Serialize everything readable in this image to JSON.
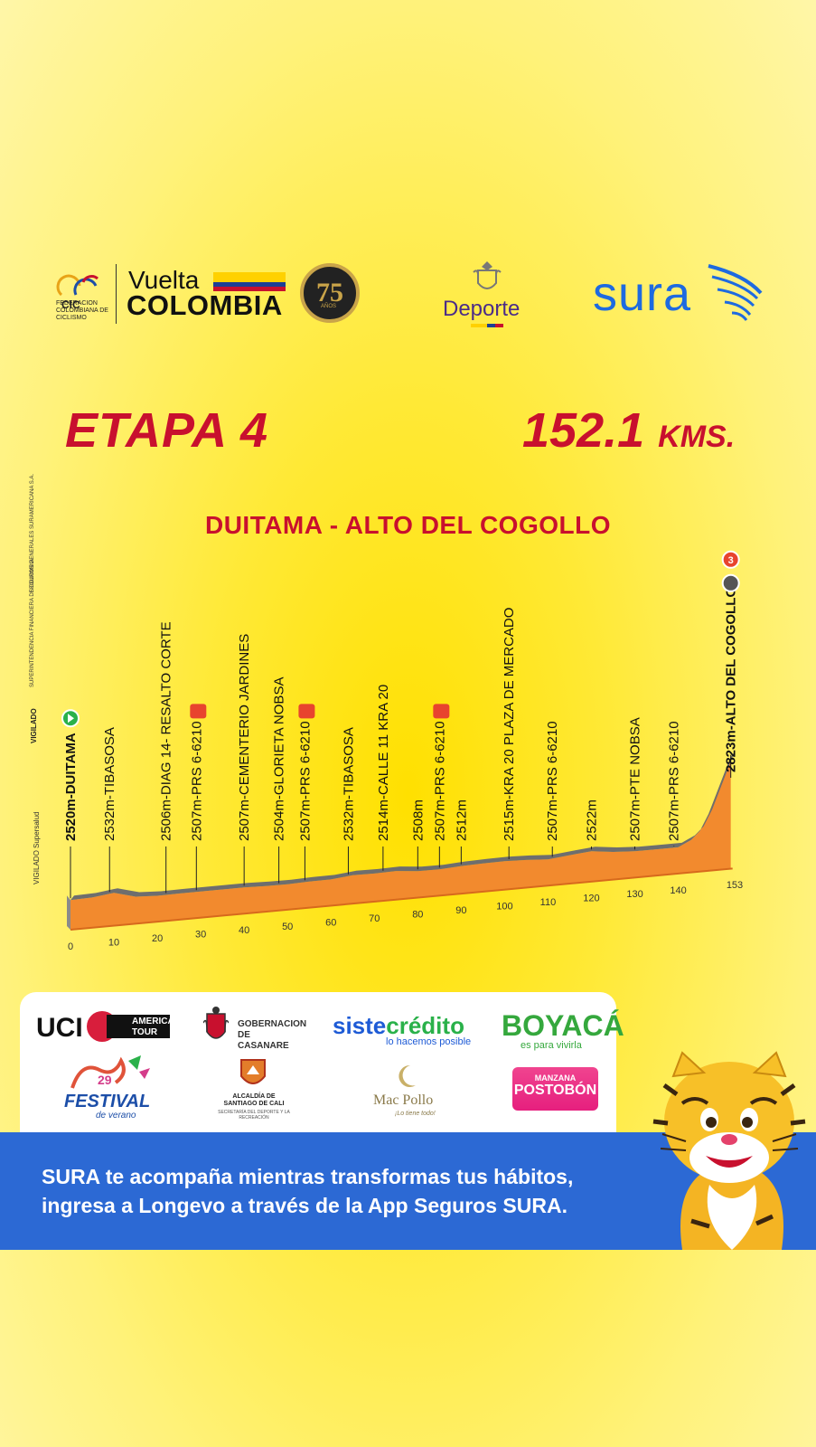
{
  "header": {
    "fcc_logo_text": "FEDERACION COLOMBIANA DE CICLISMO",
    "vuelta": "Vuelta",
    "colombia": "COLOMBIA",
    "anniversary": "75",
    "anniversary_sub": "AÑOS",
    "deporte": "Deporte",
    "sura": "sura"
  },
  "title": {
    "stage": "ETAPA 4",
    "distance_value": "152.1",
    "distance_unit": "KMS.",
    "route": "DUITAMA - ALTO DEL COGOLLO"
  },
  "side_notes": {
    "vigilado": "VIGILADO",
    "superfinanciera": "SUPERINTENDENCIA FINANCIERA DE COLOMBIA",
    "seguros": "SEGUROS GENERALES SURAMERICANA S.A.",
    "supersalud": "VIGILADO Supersalud"
  },
  "chart_data": {
    "type": "area",
    "xlabel": "",
    "ylabel": "",
    "xlim": [
      0,
      153
    ],
    "x_ticks": [
      0,
      10,
      20,
      30,
      40,
      50,
      60,
      70,
      80,
      90,
      100,
      110,
      120,
      130,
      140,
      153
    ],
    "profile": {
      "x": [
        0,
        5,
        10,
        15,
        20,
        25,
        30,
        35,
        40,
        45,
        50,
        55,
        60,
        65,
        70,
        75,
        80,
        85,
        90,
        95,
        100,
        105,
        110,
        115,
        120,
        125,
        130,
        135,
        140,
        143,
        145,
        147,
        149,
        151,
        152.1
      ],
      "y": [
        2520,
        2522,
        2532,
        2510,
        2506,
        2507,
        2507,
        2507,
        2507,
        2505,
        2504,
        2507,
        2507,
        2515,
        2514,
        2516,
        2508,
        2507,
        2512,
        2514,
        2515,
        2512,
        2507,
        2515,
        2522,
        2512,
        2507,
        2507,
        2507,
        2530,
        2560,
        2620,
        2700,
        2780,
        2823
      ]
    },
    "waypoints": [
      {
        "km": 0,
        "label": "2520m-DUITAMA",
        "bold": true,
        "icon": "start"
      },
      {
        "km": 9,
        "label": "2532m-TIBASOSA"
      },
      {
        "km": 22,
        "label": "2506m-DIAG 14- RESALTO CORTE"
      },
      {
        "km": 29,
        "label": "2507m-PRS 6-6210",
        "icon": "sprint"
      },
      {
        "km": 40,
        "label": "2507m-CEMENTERIO JARDINES"
      },
      {
        "km": 48,
        "label": "2504m-GLORIETA NOBSA"
      },
      {
        "km": 54,
        "label": "2507m-PRS 6-6210",
        "icon": "sprint"
      },
      {
        "km": 64,
        "label": "2532m-TIBASOSA"
      },
      {
        "km": 72,
        "label": "2514m-CALLE 11 KRA 20"
      },
      {
        "km": 80,
        "label": "2508m"
      },
      {
        "km": 85,
        "label": "2507m-PRS 6-6210",
        "icon": "sprint"
      },
      {
        "km": 90,
        "label": "2512m"
      },
      {
        "km": 101,
        "label": "2515m-KRA 20 PLAZA DE MERCADO"
      },
      {
        "km": 111,
        "label": "2507m-PRS 6-6210"
      },
      {
        "km": 120,
        "label": "2522m"
      },
      {
        "km": 130,
        "label": "2507m-PTE NOBSA"
      },
      {
        "km": 139,
        "label": "2507m-PRS 6-6210"
      },
      {
        "km": 152.1,
        "label": "2823m-ALTO DEL COGOLLO",
        "bold": true,
        "icon": "finish"
      }
    ],
    "finish_category": "3",
    "colors": {
      "fill": "#f28a2e",
      "top": "#6e6e6e",
      "side": "#8a8a8a",
      "bottom": "#d7691c"
    }
  },
  "sponsors": {
    "uci": "UCI",
    "uci_tour": "AMERICA TOUR",
    "casanare": "GOBERNACION DE CASANARE",
    "siste_a": "siste",
    "siste_b": "crédito",
    "siste_sub": "lo hacemos posible",
    "boyaca": "BOYACÁ",
    "boyaca_sub": "es para vivirla",
    "festival": "FESTIVAL",
    "festival_num": "29",
    "festival_sub": "de verano",
    "cali": "ALCALDÍA DE SANTIAGO DE CALI",
    "cali_sub": "SECRETARÍA DEL DEPORTE Y LA RECREACIÓN",
    "macpollo": "Mac Pollo",
    "macpollo_sub": "¡Lo tiene todo!",
    "postobon_top": "MANZANA",
    "postobon": "POSTOBÓN"
  },
  "banner": {
    "line1": "SURA te acompaña mientras transformas tus hábitos,",
    "line2": "ingresa a Longevo a través de la App Seguros SURA."
  }
}
